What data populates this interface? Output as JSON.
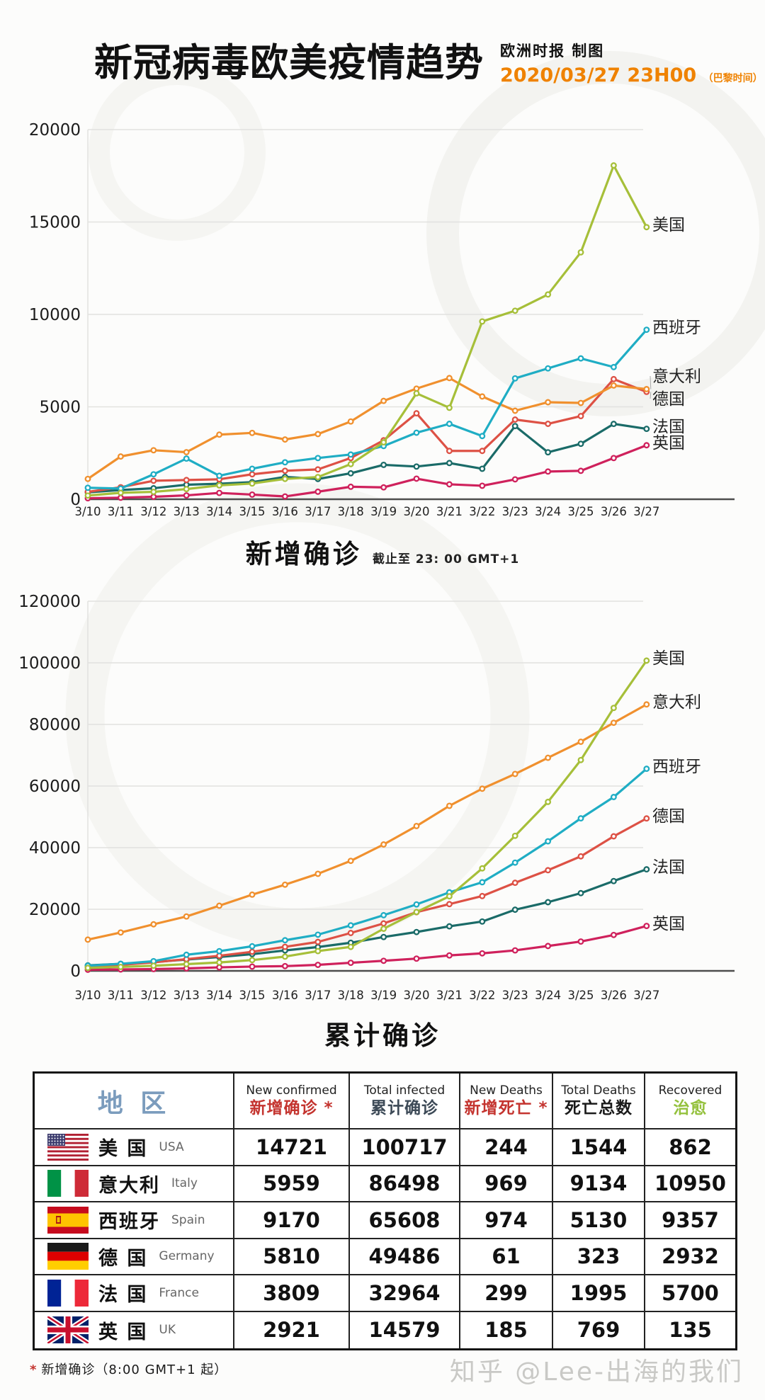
{
  "header": {
    "title": "新冠病毒欧美疫情趋势",
    "credit": "欧洲时报 制图",
    "datetime": "2020/03/27 23H00",
    "timezone_note": "（巴黎时间）",
    "accent_color": "#ef8200"
  },
  "chart_data": [
    {
      "type": "line",
      "title": "新增确诊",
      "subtitle": "截止至 23: 00 GMT+1",
      "x": [
        "3/10",
        "3/11",
        "3/12",
        "3/13",
        "3/14",
        "3/15",
        "3/16",
        "3/17",
        "3/18",
        "3/19",
        "3/20",
        "3/21",
        "3/22",
        "3/23",
        "3/24",
        "3/25",
        "3/26",
        "3/27"
      ],
      "ylim": [
        0,
        20000
      ],
      "ytick_step": 5000,
      "grid": true,
      "legend_position": "right-of-line-ends",
      "series": [
        {
          "key": "usa",
          "name": "美国",
          "color": "#a6bf39",
          "values": [
            200,
            350,
            400,
            550,
            750,
            850,
            1100,
            1200,
            1900,
            3080,
            5730,
            4950,
            9620,
            10200,
            11080,
            13360,
            18060,
            14721
          ]
        },
        {
          "key": "spain",
          "name": "西班牙",
          "color": "#1fadc4",
          "values": [
            620,
            580,
            1350,
            2200,
            1270,
            1650,
            2000,
            2230,
            2420,
            2880,
            3600,
            4080,
            3420,
            6540,
            7080,
            7620,
            7150,
            9170
          ]
        },
        {
          "key": "italy",
          "name": "意大利",
          "color": "#f0902e",
          "values": [
            1100,
            2313,
            2651,
            2547,
            3497,
            3590,
            3233,
            3526,
            4207,
            5322,
            5986,
            6557,
            5560,
            4789,
            5249,
            5210,
            6153,
            5959
          ]
        },
        {
          "key": "germany",
          "name": "德国",
          "color": "#dd5145",
          "values": [
            400,
            650,
            1000,
            1040,
            1080,
            1350,
            1540,
            1615,
            2230,
            3190,
            4650,
            2615,
            2615,
            4310,
            4080,
            4500,
            6500,
            5810
          ]
        },
        {
          "key": "france",
          "name": "法国",
          "color": "#1a6b68",
          "values": [
            372,
            497,
            595,
            785,
            838,
            924,
            1210,
            1097,
            1404,
            1861,
            1770,
            1960,
            1650,
            3960,
            2540,
            3000,
            4077,
            3809
          ]
        },
        {
          "key": "uk",
          "name": "英国",
          "color": "#cf215c",
          "values": [
            54,
            83,
            134,
            208,
            342,
            251,
            152,
            407,
            676,
            643,
            1115,
            808,
            730,
            1077,
            1500,
            1538,
            2230,
            2921
          ]
        }
      ]
    },
    {
      "type": "line",
      "title": "累计确诊",
      "subtitle": "",
      "x": [
        "3/10",
        "3/11",
        "3/12",
        "3/13",
        "3/14",
        "3/15",
        "3/16",
        "3/17",
        "3/18",
        "3/19",
        "3/20",
        "3/21",
        "3/22",
        "3/23",
        "3/24",
        "3/25",
        "3/26",
        "3/27"
      ],
      "ylim": [
        0,
        120000
      ],
      "ytick_step": 20000,
      "grid": true,
      "legend_position": "right-of-line-ends",
      "series": [
        {
          "key": "usa",
          "name": "美国",
          "color": "#a6bf39",
          "values": [
            959,
            1281,
            1663,
            2179,
            2727,
            3499,
            4632,
            6421,
            7783,
            13677,
            19100,
            24207,
            33276,
            43847,
            54856,
            68440,
            85356,
            100717
          ]
        },
        {
          "key": "italy",
          "name": "意大利",
          "color": "#f0902e",
          "values": [
            10149,
            12462,
            15113,
            17660,
            21157,
            24747,
            27980,
            31506,
            35713,
            41035,
            47021,
            53578,
            59138,
            63927,
            69176,
            74386,
            80539,
            86498
          ]
        },
        {
          "key": "spain",
          "name": "西班牙",
          "color": "#1fadc4",
          "values": [
            1695,
            2277,
            3146,
            5232,
            6391,
            7988,
            9942,
            11748,
            14769,
            18077,
            21571,
            25496,
            28768,
            35136,
            42058,
            49515,
            56438,
            65608
          ]
        },
        {
          "key": "germany",
          "name": "德国",
          "color": "#dd5145",
          "values": [
            1300,
            1950,
            2750,
            3800,
            4900,
            6200,
            7800,
            9400,
            12300,
            15400,
            19050,
            21670,
            24290,
            28600,
            32680,
            37180,
            43680,
            49486
          ]
        },
        {
          "key": "france",
          "name": "法国",
          "color": "#1a6b68",
          "values": [
            1784,
            2281,
            2876,
            3661,
            4499,
            5423,
            6633,
            7730,
            9134,
            10995,
            12612,
            14459,
            16018,
            19856,
            22300,
            25233,
            29155,
            32964
          ]
        },
        {
          "key": "uk",
          "name": "英国",
          "color": "#cf215c",
          "values": [
            373,
            456,
            590,
            798,
            1140,
            1391,
            1543,
            1950,
            2626,
            3269,
            3983,
            5018,
            5683,
            6650,
            8077,
            9529,
            11658,
            14579
          ]
        }
      ]
    }
  ],
  "table": {
    "region_header": "地  区",
    "region_color": "#7b9cbd",
    "columns": [
      {
        "en": "New confirmed",
        "zh": "新增确诊",
        "asterisk": "*",
        "color": "#c4342f"
      },
      {
        "en": "Total infected",
        "zh": "累计确诊",
        "asterisk": "",
        "color": "#3d4a57"
      },
      {
        "en": "New Deaths",
        "zh": "新增死亡",
        "asterisk": "*",
        "color": "#c4342f"
      },
      {
        "en": "Total Deaths",
        "zh": "死亡总数",
        "asterisk": "",
        "color": "#1a1a1a"
      },
      {
        "en": "Recovered",
        "zh": "治愈",
        "asterisk": "",
        "color": "#94c13d"
      }
    ],
    "rows": [
      {
        "key": "us",
        "flag": "us",
        "zh": "美  国",
        "en": "USA",
        "values": [
          "14721",
          "100717",
          "244",
          "1544",
          "862"
        ]
      },
      {
        "key": "italy",
        "flag": "it",
        "zh": "意大利",
        "en": "Italy",
        "values": [
          "5959",
          "86498",
          "969",
          "9134",
          "10950"
        ]
      },
      {
        "key": "spain",
        "flag": "es",
        "zh": "西班牙",
        "en": "Spain",
        "values": [
          "9170",
          "65608",
          "974",
          "5130",
          "9357"
        ]
      },
      {
        "key": "germany",
        "flag": "de",
        "zh": "德  国",
        "en": "Germany",
        "values": [
          "5810",
          "49486",
          "61",
          "323",
          "2932"
        ]
      },
      {
        "key": "france",
        "flag": "fr",
        "zh": "法  国",
        "en": "France",
        "values": [
          "3809",
          "32964",
          "299",
          "1995",
          "5700"
        ]
      },
      {
        "key": "uk",
        "flag": "uk",
        "zh": "英  国",
        "en": "UK",
        "values": [
          "2921",
          "14579",
          "185",
          "769",
          "135"
        ]
      }
    ]
  },
  "footnote": {
    "asterisk": "*",
    "text": "新增确诊（8:00 GMT+1 起）"
  },
  "watermark": "知乎 @Lee-出海的我们"
}
